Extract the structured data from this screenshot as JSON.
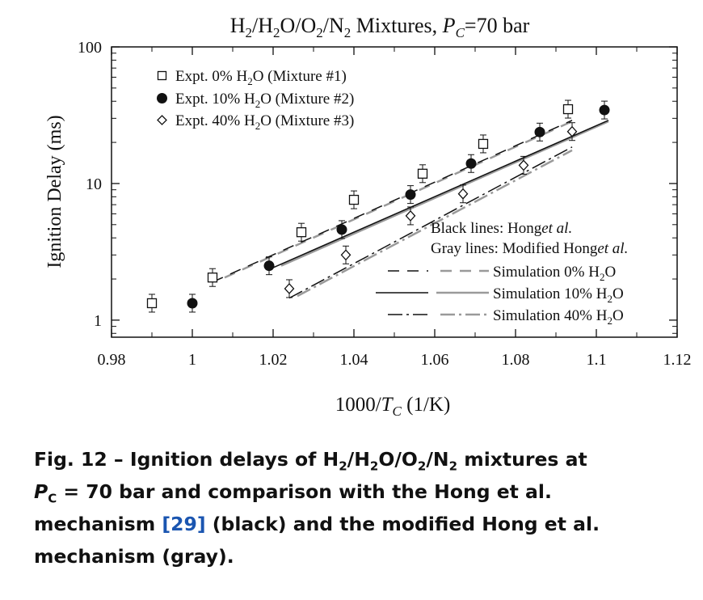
{
  "chart_data": {
    "type": "scatter",
    "title_parts": {
      "a": "H",
      "s1": "2",
      "b": "/H",
      "s2": "2",
      "c": "O/O",
      "s3": "2",
      "d": "/N",
      "s4": "2",
      "e": " Mixtures, ",
      "p": "P",
      "psub": "C",
      "f": "=70 bar"
    },
    "xlabel_parts": {
      "a": "1000/",
      "t": "T",
      "tsub": "C",
      "b": " (1/K)"
    },
    "ylabel": "Ignition Delay (ms)",
    "x_scale": "linear",
    "y_scale": "log",
    "xlim": [
      0.98,
      1.12
    ],
    "ylim": [
      0.75,
      100
    ],
    "x_ticks": [
      0.98,
      1.0,
      1.02,
      1.04,
      1.06,
      1.08,
      1.1,
      1.12
    ],
    "x_tick_labels": [
      "0.98",
      "1",
      "1.02",
      "1.04",
      "1.06",
      "1.08",
      "1.1",
      "1.12"
    ],
    "y_ticks": [
      1,
      10,
      100
    ],
    "y_tick_labels": [
      "1",
      "10",
      "100"
    ],
    "legend_position": "top-left",
    "series": [
      {
        "name_parts": {
          "a": "Expt. 0% H",
          "s": "2",
          "b": "O (Mixture #1)"
        },
        "marker": "open-square",
        "x": [
          0.99,
          1.005,
          1.027,
          1.04,
          1.057,
          1.072,
          1.093
        ],
        "y": [
          1.33,
          2.05,
          4.4,
          7.6,
          11.8,
          19.5,
          35.0
        ]
      },
      {
        "name_parts": {
          "a": "Expt. 10% H",
          "s": "2",
          "b": "O (Mixture #2)"
        },
        "marker": "filled-circle",
        "x": [
          1.0,
          1.019,
          1.037,
          1.054,
          1.069,
          1.086,
          1.102
        ],
        "y": [
          1.33,
          2.5,
          4.6,
          8.3,
          14.0,
          23.8,
          34.5
        ]
      },
      {
        "name_parts": {
          "a": "Expt. 40% H",
          "s": "2",
          "b": "O (Mixture #3)"
        },
        "marker": "open-diamond",
        "x": [
          1.024,
          1.038,
          1.054,
          1.067,
          1.082,
          1.094
        ],
        "y": [
          1.7,
          3.0,
          5.8,
          8.4,
          13.6,
          24.0
        ]
      }
    ],
    "simulations": [
      {
        "name_parts": {
          "a": "Simulation 0% H",
          "s": "2",
          "b": "O"
        },
        "black": {
          "x": [
            1.005,
            1.094
          ],
          "y": [
            1.9,
            29.0
          ]
        },
        "gray": {
          "x": [
            1.008,
            1.094
          ],
          "y": [
            2.05,
            28.5
          ]
        }
      },
      {
        "name_parts": {
          "a": "Simulation 10% H",
          "s": "2",
          "b": "O"
        },
        "black": {
          "x": [
            1.019,
            1.103
          ],
          "y": [
            2.35,
            29.0
          ]
        },
        "gray": {
          "x": [
            1.022,
            1.103
          ],
          "y": [
            2.5,
            28.5
          ]
        }
      },
      {
        "name_parts": {
          "a": "Simulation 40% H",
          "s": "2",
          "b": "O"
        },
        "black": {
          "x": [
            1.024,
            1.094
          ],
          "y": [
            1.45,
            18.5
          ]
        },
        "gray": {
          "x": [
            1.026,
            1.094
          ],
          "y": [
            1.5,
            17.5
          ]
        }
      }
    ],
    "annotation_black_parts": {
      "a": "Black lines: Hong",
      "b": "et al."
    },
    "annotation_gray_parts": {
      "a": "Gray lines: Modified Hong",
      "b": "et al."
    },
    "colors": {
      "black_line": "#111111",
      "gray_line": "#9a9a9a"
    }
  },
  "caption": {
    "p1": "Fig. 12 – Ignition delays of H",
    "s1": "2",
    "p2": "/H",
    "s2": "2",
    "p3": "O/O",
    "s3": "2",
    "p4": "/N",
    "s4": "2",
    "p5": " mixtures at",
    "p6": "P",
    "s5": "C",
    "p7": " = 70 bar and comparison with the Hong et al.",
    "p8": "mechanism ",
    "ref": "[29]",
    "p9": " (black) and the modified Hong et al.",
    "p10": "mechanism (gray)."
  }
}
